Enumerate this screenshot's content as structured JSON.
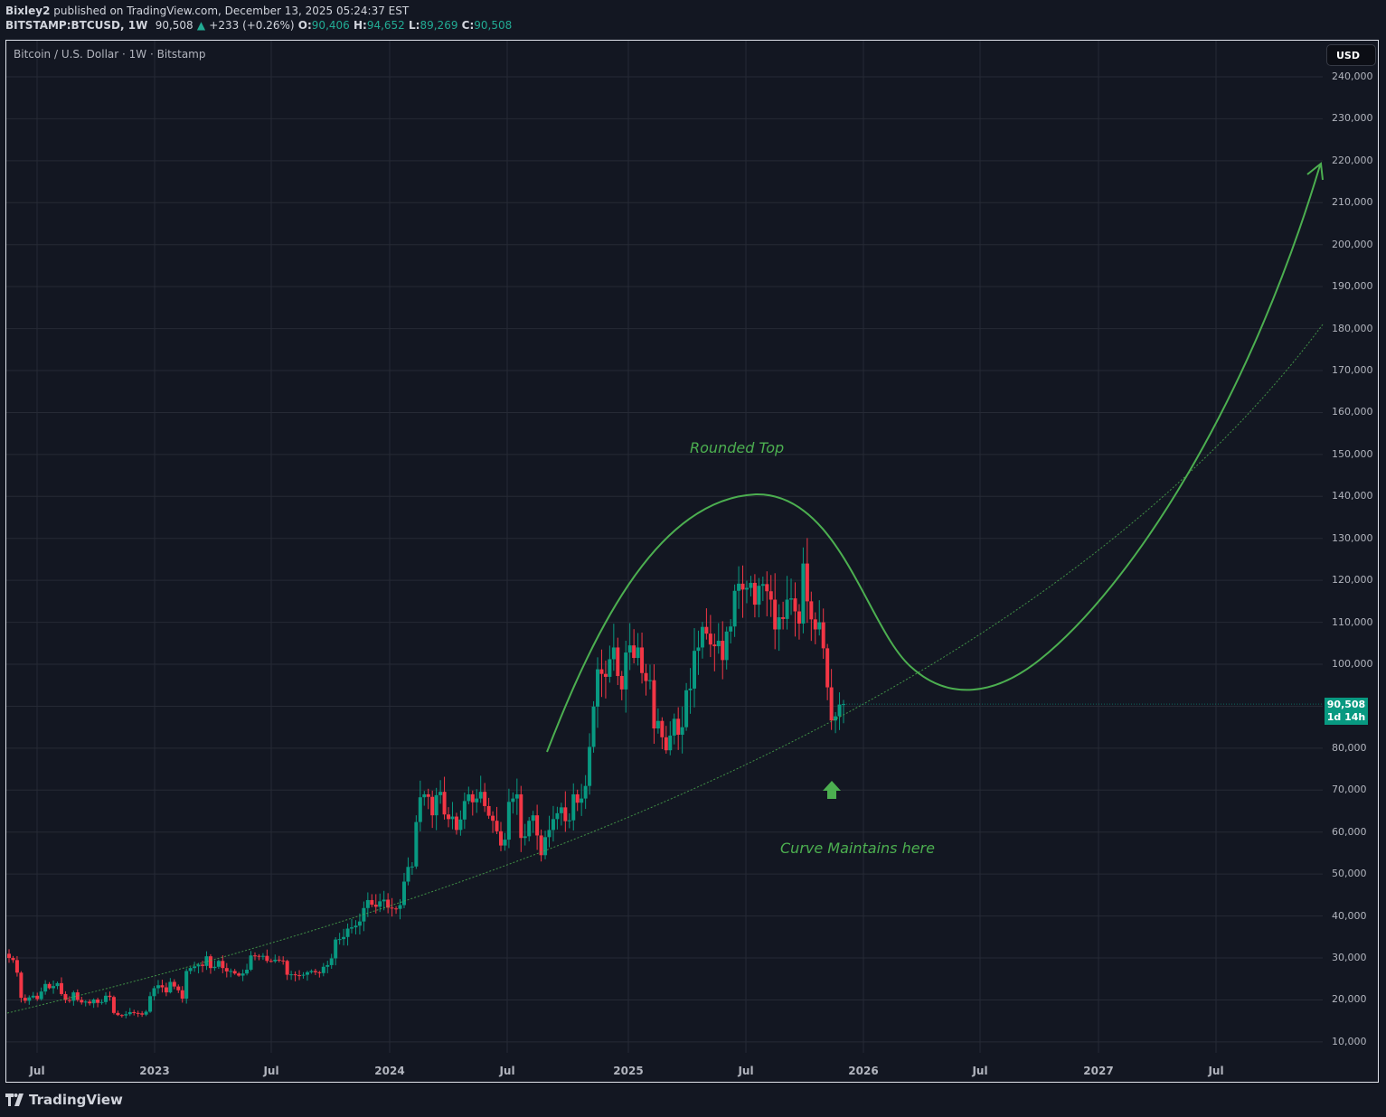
{
  "header": {
    "publisher": "Bixley2",
    "published_text": "published on TradingView.com, December 13, 2025 05:24:37 EST",
    "symbol": "BITSTAMP:BTCUSD, 1W",
    "last": "90,508",
    "change": "+233 (+0.26%)",
    "open_label": "O:",
    "open": "90,406",
    "high_label": "H:",
    "high": "94,652",
    "low_label": "L:",
    "low": "89,269",
    "close_label": "C:",
    "close": "90,508"
  },
  "chart_title": "Bitcoin / U.S. Dollar · 1W · Bitstamp",
  "currency_button": "USD",
  "price_tag": {
    "price": "90,508",
    "countdown": "1d 14h"
  },
  "annotations": {
    "rounded_top": "Rounded Top",
    "curve_maintains": "Curve Maintains here"
  },
  "logo_text": "TradingView",
  "colors": {
    "background": "#131722",
    "up": "#089981",
    "down": "#f23645",
    "drawing": "#4caf50",
    "grid": "#262a35"
  },
  "chart_data": {
    "type": "candlestick",
    "title": "Bitcoin / U.S. Dollar · 1W · Bitstamp",
    "interval": "1W",
    "ylabel": "USD",
    "ylim": [
      10000,
      240000
    ],
    "y_ticks": [
      "240,000",
      "230,000",
      "220,000",
      "210,000",
      "200,000",
      "190,000",
      "180,000",
      "170,000",
      "160,000",
      "150,000",
      "140,000",
      "130,000",
      "120,000",
      "110,000",
      "100,000",
      "90,000",
      "80,000",
      "70,000",
      "60,000",
      "50,000",
      "40,000",
      "30,000",
      "20,000",
      "10,000"
    ],
    "x_ticks": [
      "Jul",
      "2023",
      "Jul",
      "2024",
      "Jul",
      "2025",
      "Jul",
      "2026",
      "Jul",
      "2027",
      "Jul"
    ],
    "grid": true,
    "closes_weekly": [
      30000,
      29500,
      26500,
      20500,
      19800,
      20600,
      21000,
      20200,
      22000,
      23800,
      22800,
      23300,
      24000,
      21400,
      20000,
      19800,
      21800,
      20000,
      19400,
      19600,
      19200,
      20100,
      19300,
      19500,
      21000,
      20700,
      16900,
      16400,
      16300,
      16600,
      17100,
      16900,
      16800,
      16500,
      17200,
      20900,
      22800,
      23500,
      23000,
      21800,
      24300,
      23200,
      22300,
      20300,
      26900,
      27600,
      28000,
      28400,
      28100,
      30400,
      27600,
      27900,
      29300,
      27600,
      26800,
      26900,
      26300,
      25800,
      26300,
      27200,
      30600,
      30500,
      30300,
      30500,
      29300,
      29200,
      29600,
      29400,
      29300,
      26000,
      26100,
      25900,
      25800,
      26000,
      26600,
      26900,
      26600,
      26400,
      27900,
      28300,
      29900,
      34400,
      34500,
      35000,
      37000,
      37300,
      37700,
      38700,
      41900,
      43800,
      42700,
      42200,
      43500,
      43900,
      42000,
      41800,
      41700,
      42600,
      48200,
      51700,
      51800,
      62400,
      68300,
      69000,
      68400,
      64000,
      68800,
      69600,
      64200,
      63100,
      63700,
      60500,
      63000,
      67400,
      69000,
      67100,
      68000,
      69600,
      66200,
      63900,
      62700,
      60200,
      56800,
      58200,
      67200,
      68000,
      69000,
      58600,
      59000,
      62700,
      64000,
      59200,
      54500,
      58800,
      60500,
      63100,
      64500,
      65900,
      62600,
      62800,
      69000,
      67000,
      68000,
      71000,
      80300,
      89900,
      98800,
      97700,
      97000,
      101200,
      104000,
      97200,
      94000,
      102800,
      104500,
      101500,
      104000,
      97900,
      96000,
      96200,
      84700,
      86500,
      82600,
      79500,
      83000,
      87000,
      83200,
      85000,
      93800,
      94200,
      103200,
      104000,
      108900,
      107300,
      104700,
      104300,
      105600,
      101000,
      107800,
      109000,
      117500,
      119200,
      117800,
      118200,
      119400,
      114200,
      118700,
      119100,
      117400,
      115400,
      108300,
      111200,
      110800,
      115400,
      115700,
      112600,
      109700,
      124000,
      115000,
      110700,
      108300,
      110000,
      103800,
      94500,
      86600,
      87600,
      90400,
      90508
    ],
    "drawings": [
      {
        "type": "curve",
        "name": "Rounded Top arc",
        "points_approx": [
          [
            "2024-09",
            79000
          ],
          [
            "2025-07",
            140500
          ],
          [
            "2026-06",
            94500
          ],
          [
            "2027-11",
            219000
          ]
        ],
        "arrow_end": true
      },
      {
        "type": "dotted-curve",
        "name": "support parabola",
        "points_approx": [
          [
            "2022-06",
            17000
          ],
          [
            "2024-07",
            50000
          ],
          [
            "2025-11",
            86000
          ],
          [
            "2027-12",
            181000
          ]
        ]
      },
      {
        "type": "arrow-up",
        "at": [
          "2025-11",
          72000
        ]
      }
    ]
  }
}
